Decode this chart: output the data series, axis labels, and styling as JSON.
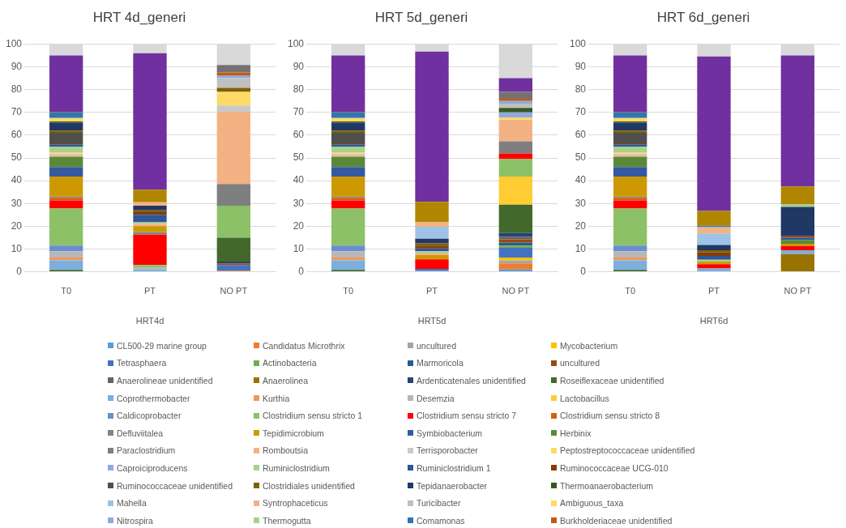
{
  "chart_data": [
    {
      "type": "bar",
      "title": "HRT 4d_generi",
      "xlabel": "HRT4d",
      "categories": [
        "T0",
        "PT",
        "NO PT"
      ],
      "stacked": true,
      "ylim": [
        0,
        100
      ],
      "yticks": [
        0,
        10,
        20,
        30,
        40,
        50,
        60,
        70,
        80,
        90,
        100
      ],
      "grid": "y",
      "legend": "bottom",
      "series": [
        {
          "name": "CL500-29 marine group",
          "color": "#5b9bd5",
          "values": [
            null,
            null,
            null
          ]
        },
        {
          "name": "Candidatus Microthrix",
          "color": "#ed7d31",
          "values": [
            null,
            null,
            0.5
          ]
        },
        {
          "name": "uncultured",
          "color": "#a5a5a5",
          "values": [
            null,
            null,
            null
          ]
        },
        {
          "name": "Mycobacterium",
          "color": "#ffc000",
          "values": [
            null,
            null,
            null
          ]
        },
        {
          "name": "Tetrasphaera",
          "color": "#4472c4",
          "values": [
            null,
            null,
            2.5
          ]
        },
        {
          "name": "Actinobacteria",
          "color": "#70ad47",
          "values": [
            null,
            null,
            null
          ]
        },
        {
          "name": "Marmoricola",
          "color": "#255e91",
          "values": [
            null,
            null,
            null
          ]
        },
        {
          "name": "uncultured",
          "color": "#9e480e",
          "values": [
            null,
            null,
            0.7
          ]
        },
        {
          "name": "Anaerolineae unidentified",
          "color": "#636363",
          "values": [
            null,
            null,
            null
          ]
        },
        {
          "name": "Anaerolinea",
          "color": "#997300",
          "values": [
            null,
            null,
            null
          ]
        },
        {
          "name": "Ardenticatenales unidentified",
          "color": "#264478",
          "values": [
            null,
            null,
            0.8
          ]
        },
        {
          "name": "Roseiflexaceae unidentified",
          "color": "#43682b",
          "values": [
            0.8,
            null,
            10.5
          ]
        },
        {
          "name": "Coprothermobacter",
          "color": "#7cafdd",
          "values": [
            4.2,
            1,
            null
          ]
        },
        {
          "name": "Kurthia",
          "color": "#f1975a",
          "values": [
            1.3,
            null,
            null
          ]
        },
        {
          "name": "Desemzia",
          "color": "#b7b7b7",
          "values": [
            2.7,
            0.7,
            null
          ]
        },
        {
          "name": "Lactobacillus",
          "color": "#ffcd33",
          "values": [
            null,
            null,
            null
          ]
        },
        {
          "name": "Caldicoprobacter",
          "color": "#698ed0",
          "values": [
            2.5,
            null,
            null
          ]
        },
        {
          "name": "Clostridium sensu stricto 1",
          "color": "#8cc168",
          "values": [
            16.3,
            1.3,
            14
          ]
        },
        {
          "name": "Clostridium sensu stricto 7",
          "color": "#ff0000",
          "values": [
            3.5,
            13.3,
            null
          ]
        },
        {
          "name": "Clostridium sensu stricto 8",
          "color": "#d26012",
          "values": [
            1.2,
            null,
            null
          ]
        },
        {
          "name": "Defluviitalea",
          "color": "#848484",
          "values": [
            0.5,
            1.2,
            null
          ]
        },
        {
          "name": "Tepidimicrobium",
          "color": "#cc9a00",
          "values": [
            8.8,
            2.5,
            null
          ]
        },
        {
          "name": "Symbiobacterium",
          "color": "#335aa1",
          "values": [
            4.2,
            null,
            null
          ]
        },
        {
          "name": "Herbinix",
          "color": "#5a8a39",
          "values": [
            4.5,
            null,
            null
          ]
        },
        {
          "name": "Paraclostridium",
          "color": "#7f7f7f",
          "values": [
            null,
            null,
            9.5
          ]
        },
        {
          "name": "Romboutsia",
          "color": "#f4b183",
          "values": [
            0.8,
            1,
            31.8
          ]
        },
        {
          "name": "Terrisporobacter",
          "color": "#c9c9c9",
          "values": [
            0.7,
            null,
            2.7
          ]
        },
        {
          "name": "Peptostreptococcaceae unidentified",
          "color": "#ffd966",
          "values": [
            0.5,
            null,
            6
          ]
        },
        {
          "name": "Caproiciproducens",
          "color": "#8faadc",
          "values": [
            null,
            null,
            null
          ]
        },
        {
          "name": "Ruminiclostridium",
          "color": "#a9d18e",
          "values": [
            2.5,
            0.7,
            null
          ]
        },
        {
          "name": "Ruminiclostridium 1",
          "color": "#2f5597",
          "values": [
            1,
            3.3,
            null
          ]
        },
        {
          "name": "Ruminococcaceae UCG-010",
          "color": "#843c0c",
          "values": [
            0.4,
            1.2,
            null
          ]
        },
        {
          "name": "Ruminococcaceae unidentified",
          "color": "#4f4f4f",
          "values": [
            4.6,
            null,
            null
          ]
        },
        {
          "name": "Clostridiales unidentified",
          "color": "#7f6000",
          "values": [
            1,
            0.8,
            1.8
          ]
        },
        {
          "name": "Tepidanaerobacter",
          "color": "#203864",
          "values": [
            3.5,
            2,
            null
          ]
        },
        {
          "name": "Thermoanaerobacterium",
          "color": "#385723",
          "values": [
            0.5,
            null,
            null
          ]
        },
        {
          "name": "Mahella",
          "color": "#9dc3e6",
          "values": [
            null,
            null,
            null
          ]
        },
        {
          "name": "Syntrophaceticus",
          "color": "#f4b183",
          "values": [
            null,
            1.5,
            null
          ]
        },
        {
          "name": "Turicibacter",
          "color": "#c0c0c0",
          "values": [
            null,
            null,
            4.2
          ]
        },
        {
          "name": "Ambiguous_taxa",
          "color": "#ffd966",
          "values": [
            1.5,
            null,
            null
          ]
        },
        {
          "name": "Nitrospira",
          "color": "#8faadc",
          "values": [
            null,
            null,
            1.3
          ]
        },
        {
          "name": "Thermogutta",
          "color": "#a9d18e",
          "values": [
            null,
            null,
            null
          ]
        },
        {
          "name": "Comamonas",
          "color": "#2e75b6",
          "values": [
            2.5,
            null,
            null
          ]
        },
        {
          "name": "Burkholderiaceae unidentified",
          "color": "#c55a11",
          "values": [
            0.3,
            null,
            1.2
          ]
        },
        {
          "color": "#767171",
          "values": [
            null,
            null,
            3.3
          ]
        },
        {
          "color": "#b08600",
          "values": [
            null,
            5.5,
            null
          ]
        },
        {
          "color": "#7030a0",
          "values": [
            24.7,
            60,
            null
          ]
        },
        {
          "color": "#d9d9d9",
          "values": [
            5,
            4,
            9.2
          ]
        }
      ]
    },
    {
      "type": "bar",
      "title": "HRT 5d_generi",
      "xlabel": "HRT5d",
      "categories": [
        "T0",
        "PT",
        "NO PT"
      ],
      "stacked": true,
      "ylim": [
        0,
        100
      ],
      "yticks": [
        0,
        10,
        20,
        30,
        40,
        50,
        60,
        70,
        80,
        90,
        100
      ],
      "grid": "y",
      "series": [
        {
          "color": "#5b9bd5",
          "values": [
            null,
            0.5,
            1
          ]
        },
        {
          "color": "#ed7d31",
          "values": [
            null,
            null,
            2.7
          ]
        },
        {
          "color": "#a5a5a5",
          "values": [
            null,
            null,
            1.3
          ]
        },
        {
          "color": "#ffc000",
          "values": [
            null,
            null,
            1.3
          ]
        },
        {
          "color": "#4472c4",
          "values": [
            null,
            0.8,
            4.2
          ]
        },
        {
          "color": "#70ad47",
          "values": [
            null,
            null,
            1
          ]
        },
        {
          "color": "#255e91",
          "values": [
            null,
            null,
            1.3
          ]
        },
        {
          "color": "#9e480e",
          "values": [
            null,
            null,
            1.5
          ]
        },
        {
          "color": "#636363",
          "values": [
            null,
            null,
            1
          ]
        },
        {
          "color": "#997300",
          "values": [
            null,
            null,
            null
          ]
        },
        {
          "color": "#264478",
          "values": [
            null,
            null,
            1.7
          ]
        },
        {
          "color": "#43682b",
          "values": [
            0.8,
            null,
            12.5
          ]
        },
        {
          "color": "#7cafdd",
          "values": [
            4.2,
            null,
            null
          ]
        },
        {
          "color": "#f1975a",
          "values": [
            1.3,
            null,
            null
          ]
        },
        {
          "color": "#b7b7b7",
          "values": [
            2.7,
            null,
            null
          ]
        },
        {
          "color": "#ffcd33",
          "values": [
            null,
            null,
            12.3
          ]
        },
        {
          "color": "#698ed0",
          "values": [
            2.5,
            null,
            null
          ]
        },
        {
          "color": "#8cc168",
          "values": [
            16.3,
            null,
            7.7
          ]
        },
        {
          "color": "#ff0000",
          "values": [
            3.5,
            4.2,
            2.5
          ]
        },
        {
          "color": "#d26012",
          "values": [
            1.2,
            null,
            null
          ]
        },
        {
          "color": "#848484",
          "values": [
            0.5,
            null,
            null
          ]
        },
        {
          "color": "#cc9a00",
          "values": [
            8.8,
            1.8,
            null
          ]
        },
        {
          "color": "#335aa1",
          "values": [
            4.2,
            null,
            null
          ]
        },
        {
          "color": "#5a8a39",
          "values": [
            4.5,
            null,
            null
          ]
        },
        {
          "color": "#7f7f7f",
          "values": [
            null,
            null,
            5.3
          ]
        },
        {
          "color": "#f4b183",
          "values": [
            0.8,
            0.7,
            9.5
          ]
        },
        {
          "color": "#c9c9c9",
          "values": [
            0.7,
            null,
            null
          ]
        },
        {
          "color": "#ffd966",
          "values": [
            0.5,
            null,
            1
          ]
        },
        {
          "color": "#8faadc",
          "values": [
            null,
            null,
            2.2
          ]
        },
        {
          "color": "#a9d18e",
          "values": [
            2.5,
            1,
            null
          ]
        },
        {
          "color": "#2f5597",
          "values": [
            1,
            1.3,
            null
          ]
        },
        {
          "color": "#843c0c",
          "values": [
            0.4,
            1.2,
            null
          ]
        },
        {
          "color": "#4f4f4f",
          "values": [
            4.6,
            null,
            null
          ]
        },
        {
          "color": "#7f6000",
          "values": [
            1,
            1,
            null
          ]
        },
        {
          "color": "#203864",
          "values": [
            3.5,
            2,
            null
          ]
        },
        {
          "color": "#385723",
          "values": [
            0.5,
            null,
            2
          ]
        },
        {
          "color": "#9dc3e6",
          "values": [
            null,
            5.3,
            null
          ]
        },
        {
          "color": "#f4b183",
          "values": [
            null,
            1.9,
            null
          ]
        },
        {
          "color": "#c0c0c0",
          "values": [
            null,
            null,
            1.8
          ]
        },
        {
          "color": "#ffd966",
          "values": [
            1.5,
            null,
            null
          ]
        },
        {
          "color": "#8faadc",
          "values": [
            null,
            null,
            1.2
          ]
        },
        {
          "color": "#a9d18e",
          "values": [
            null,
            null,
            null
          ]
        },
        {
          "color": "#2e75b6",
          "values": [
            2.5,
            null,
            null
          ]
        },
        {
          "color": "#c55a11",
          "values": [
            0.3,
            null,
            1
          ]
        },
        {
          "color": "#767171",
          "values": [
            null,
            null,
            3
          ]
        },
        {
          "color": "#b08600",
          "values": [
            null,
            9,
            null
          ]
        },
        {
          "color": "#7030a0",
          "values": [
            24.7,
            66,
            6
          ]
        },
        {
          "color": "#d9d9d9",
          "values": [
            5,
            3.3,
            15
          ]
        }
      ]
    },
    {
      "type": "bar",
      "title": "HRT 6d_generi",
      "xlabel": "HRT6d",
      "categories": [
        "T0",
        "PT",
        "NO PT"
      ],
      "stacked": true,
      "ylim": [
        0,
        100
      ],
      "yticks": [
        0,
        10,
        20,
        30,
        40,
        50,
        60,
        70,
        80,
        90,
        100
      ],
      "grid": "y",
      "series": [
        {
          "color": "#5b9bd5",
          "values": [
            null,
            null,
            null
          ]
        },
        {
          "color": "#ed7d31",
          "values": [
            null,
            null,
            null
          ]
        },
        {
          "color": "#a5a5a5",
          "values": [
            null,
            null,
            null
          ]
        },
        {
          "color": "#ffc000",
          "values": [
            null,
            null,
            null
          ]
        },
        {
          "color": "#4472c4",
          "values": [
            null,
            null,
            null
          ]
        },
        {
          "color": "#70ad47",
          "values": [
            null,
            null,
            null
          ]
        },
        {
          "color": "#255e91",
          "values": [
            null,
            null,
            null
          ]
        },
        {
          "color": "#9e480e",
          "values": [
            null,
            null,
            null
          ]
        },
        {
          "color": "#636363",
          "values": [
            null,
            null,
            null
          ]
        },
        {
          "color": "#997300",
          "values": [
            null,
            null,
            7.8
          ]
        },
        {
          "color": "#264478",
          "values": [
            null,
            null,
            null
          ]
        },
        {
          "color": "#43682b",
          "values": [
            0.8,
            null,
            null
          ]
        },
        {
          "color": "#7cafdd",
          "values": [
            4.2,
            1.5,
            1.7
          ]
        },
        {
          "color": "#f1975a",
          "values": [
            1.3,
            null,
            null
          ]
        },
        {
          "color": "#b7b7b7",
          "values": [
            2.7,
            null,
            null
          ]
        },
        {
          "color": "#ffcd33",
          "values": [
            null,
            null,
            null
          ]
        },
        {
          "color": "#698ed0",
          "values": [
            2.5,
            null,
            null
          ]
        },
        {
          "color": "#8cc168",
          "values": [
            16.3,
            null,
            null
          ]
        },
        {
          "color": "#ff0000",
          "values": [
            3.5,
            1.8,
            1.8
          ]
        },
        {
          "color": "#d26012",
          "values": [
            1.2,
            null,
            null
          ]
        },
        {
          "color": "#848484",
          "values": [
            0.5,
            null,
            null
          ]
        },
        {
          "color": "#cc9a00",
          "values": [
            8.8,
            1.2,
            1
          ]
        },
        {
          "color": "#335aa1",
          "values": [
            4.2,
            null,
            null
          ]
        },
        {
          "color": "#5a8a39",
          "values": [
            4.5,
            null,
            1.7
          ]
        },
        {
          "color": "#7f7f7f",
          "values": [
            null,
            null,
            null
          ]
        },
        {
          "color": "#f4b183",
          "values": [
            0.8,
            null,
            null
          ]
        },
        {
          "color": "#c9c9c9",
          "values": [
            0.7,
            null,
            null
          ]
        },
        {
          "color": "#ffd966",
          "values": [
            0.5,
            null,
            null
          ]
        },
        {
          "color": "#8faadc",
          "values": [
            null,
            null,
            null
          ]
        },
        {
          "color": "#a9d18e",
          "values": [
            2.5,
            0.8,
            null
          ]
        },
        {
          "color": "#2f5597",
          "values": [
            1,
            1.7,
            1
          ]
        },
        {
          "color": "#843c0c",
          "values": [
            0.4,
            1.5,
            0.8
          ]
        },
        {
          "color": "#4f4f4f",
          "values": [
            4.6,
            null,
            null
          ]
        },
        {
          "color": "#7f6000",
          "values": [
            1,
            1,
            null
          ]
        },
        {
          "color": "#203864",
          "values": [
            3.5,
            2.3,
            12.7
          ]
        },
        {
          "color": "#385723",
          "values": [
            0.5,
            null,
            null
          ]
        },
        {
          "color": "#9dc3e6",
          "values": [
            null,
            5,
            null
          ]
        },
        {
          "color": "#f4b183",
          "values": [
            null,
            2.8,
            null
          ]
        },
        {
          "color": "#c0c0c0",
          "values": [
            null,
            null,
            null
          ]
        },
        {
          "color": "#ffd966",
          "values": [
            1.5,
            null,
            null
          ]
        },
        {
          "color": "#8faadc",
          "values": [
            null,
            null,
            null
          ]
        },
        {
          "color": "#a9d18e",
          "values": [
            null,
            null,
            1.2
          ]
        },
        {
          "color": "#2e75b6",
          "values": [
            2.5,
            0.6,
            null
          ]
        },
        {
          "color": "#c55a11",
          "values": [
            0.3,
            null,
            null
          ]
        },
        {
          "color": "#767171",
          "values": [
            null,
            null,
            null
          ]
        },
        {
          "color": "#b08600",
          "values": [
            null,
            6.5,
            7.8
          ]
        },
        {
          "color": "#7030a0",
          "values": [
            24.7,
            67.8,
            57.5
          ]
        },
        {
          "color": "#d9d9d9",
          "values": [
            5,
            5.5,
            5
          ]
        }
      ]
    }
  ]
}
